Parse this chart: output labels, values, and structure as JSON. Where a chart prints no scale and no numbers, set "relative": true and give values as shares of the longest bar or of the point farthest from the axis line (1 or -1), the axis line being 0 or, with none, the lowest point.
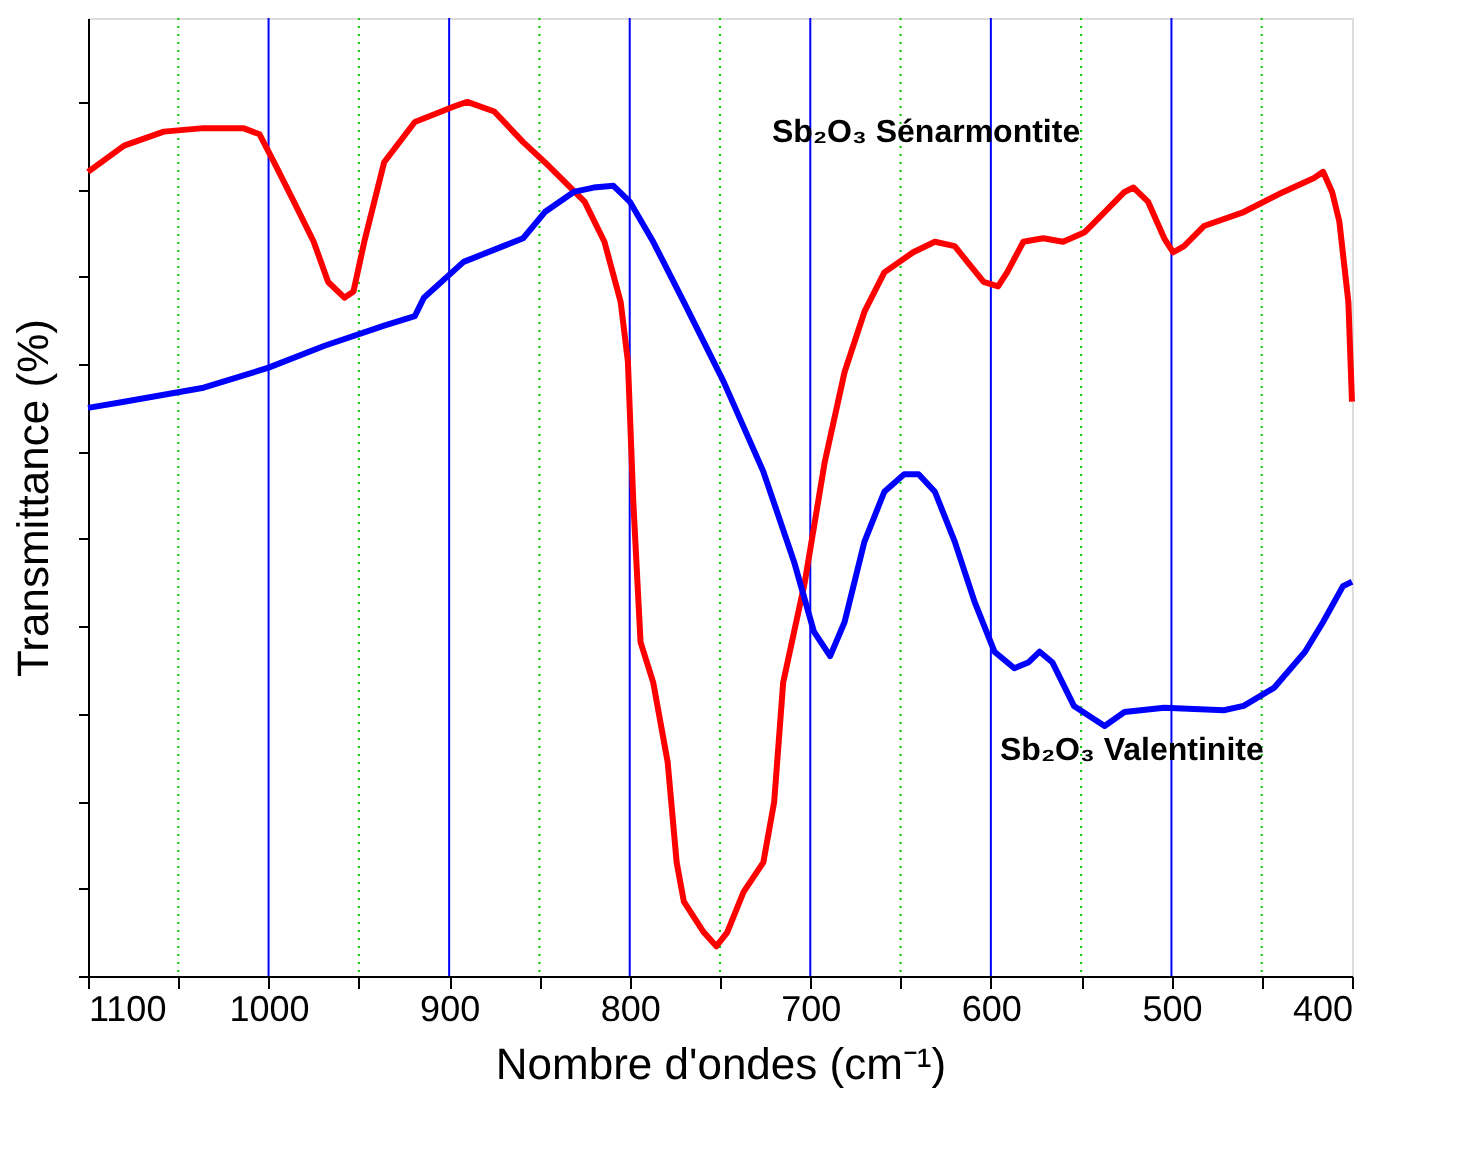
{
  "chart_data": {
    "type": "line",
    "relative": true,
    "xlabel": "Nombre d'ondes (cm⁻¹)",
    "ylabel": "Transmittance (%)",
    "xlim": [
      1100,
      400
    ],
    "xticks": [
      1100,
      {
        "value": 1050,
        "label": null
      },
      1000,
      {
        "value": 950,
        "label": null
      },
      900,
      {
        "value": 850,
        "label": null
      },
      800,
      {
        "value": 750,
        "label": null
      },
      700,
      {
        "value": 650,
        "label": null
      },
      600,
      {
        "value": 550,
        "label": null
      },
      500,
      {
        "value": 450,
        "label": null
      },
      400
    ],
    "grid": "x",
    "tick_labels": "x",
    "marker": "none",
    "line_style": "solid",
    "annotations": [
      "Sb₂O₃ Sénarmontite",
      "Sb₂O₃ Valentinite"
    ],
    "series": [
      {
        "color": "#ff0000",
        "x": [
          1100,
          1080,
          1058,
          1036,
          1014,
          1005,
          997,
          986,
          975,
          967,
          958,
          953,
          947,
          936,
          919,
          897,
          890,
          875,
          859,
          847,
          825,
          814,
          805,
          801,
          798,
          794,
          787,
          779,
          774,
          770,
          759,
          752,
          746,
          737,
          726,
          720,
          715,
          703,
          692,
          681,
          670,
          659,
          643,
          631,
          620,
          613,
          604,
          596,
          591,
          582,
          571,
          560,
          548,
          537,
          526,
          521,
          513,
          504,
          499,
          493,
          482,
          460,
          438,
          421,
          416,
          411,
          407,
          402,
          400
        ],
        "values": [
          0.92,
          0.95,
          0.966,
          0.97,
          0.97,
          0.963,
          0.931,
          0.886,
          0.84,
          0.794,
          0.776,
          0.783,
          0.84,
          0.931,
          0.977,
          0.995,
          1.0,
          0.989,
          0.954,
          0.931,
          0.886,
          0.84,
          0.771,
          0.703,
          0.542,
          0.382,
          0.336,
          0.245,
          0.13,
          0.085,
          0.05,
          0.034,
          0.05,
          0.096,
          0.13,
          0.199,
          0.336,
          0.451,
          0.588,
          0.691,
          0.76,
          0.805,
          0.828,
          0.84,
          0.835,
          0.817,
          0.794,
          0.789,
          0.805,
          0.84,
          0.844,
          0.84,
          0.851,
          0.874,
          0.897,
          0.902,
          0.886,
          0.844,
          0.828,
          0.835,
          0.858,
          0.874,
          0.897,
          0.913,
          0.92,
          0.897,
          0.863,
          0.771,
          0.657
        ]
      },
      {
        "color": "#0000ff",
        "x": [
          1100,
          1080,
          1036,
          1000,
          969,
          936,
          919,
          914,
          892,
          870,
          859,
          847,
          831,
          820,
          809,
          800,
          787,
          770,
          748,
          726,
          709,
          698,
          689,
          681,
          670,
          659,
          648,
          640,
          631,
          620,
          609,
          598,
          587,
          579,
          573,
          566,
          554,
          537,
          526,
          504,
          471,
          460,
          443,
          426,
          416,
          405,
          400
        ],
        "values": [
          0.65,
          0.657,
          0.673,
          0.696,
          0.721,
          0.744,
          0.755,
          0.776,
          0.817,
          0.835,
          0.844,
          0.874,
          0.897,
          0.902,
          0.904,
          0.886,
          0.84,
          0.771,
          0.68,
          0.577,
          0.474,
          0.394,
          0.366,
          0.405,
          0.497,
          0.554,
          0.574,
          0.574,
          0.554,
          0.497,
          0.428,
          0.371,
          0.352,
          0.359,
          0.371,
          0.359,
          0.309,
          0.286,
          0.302,
          0.307,
          0.304,
          0.309,
          0.33,
          0.371,
          0.405,
          0.446,
          0.451
        ]
      }
    ]
  }
}
